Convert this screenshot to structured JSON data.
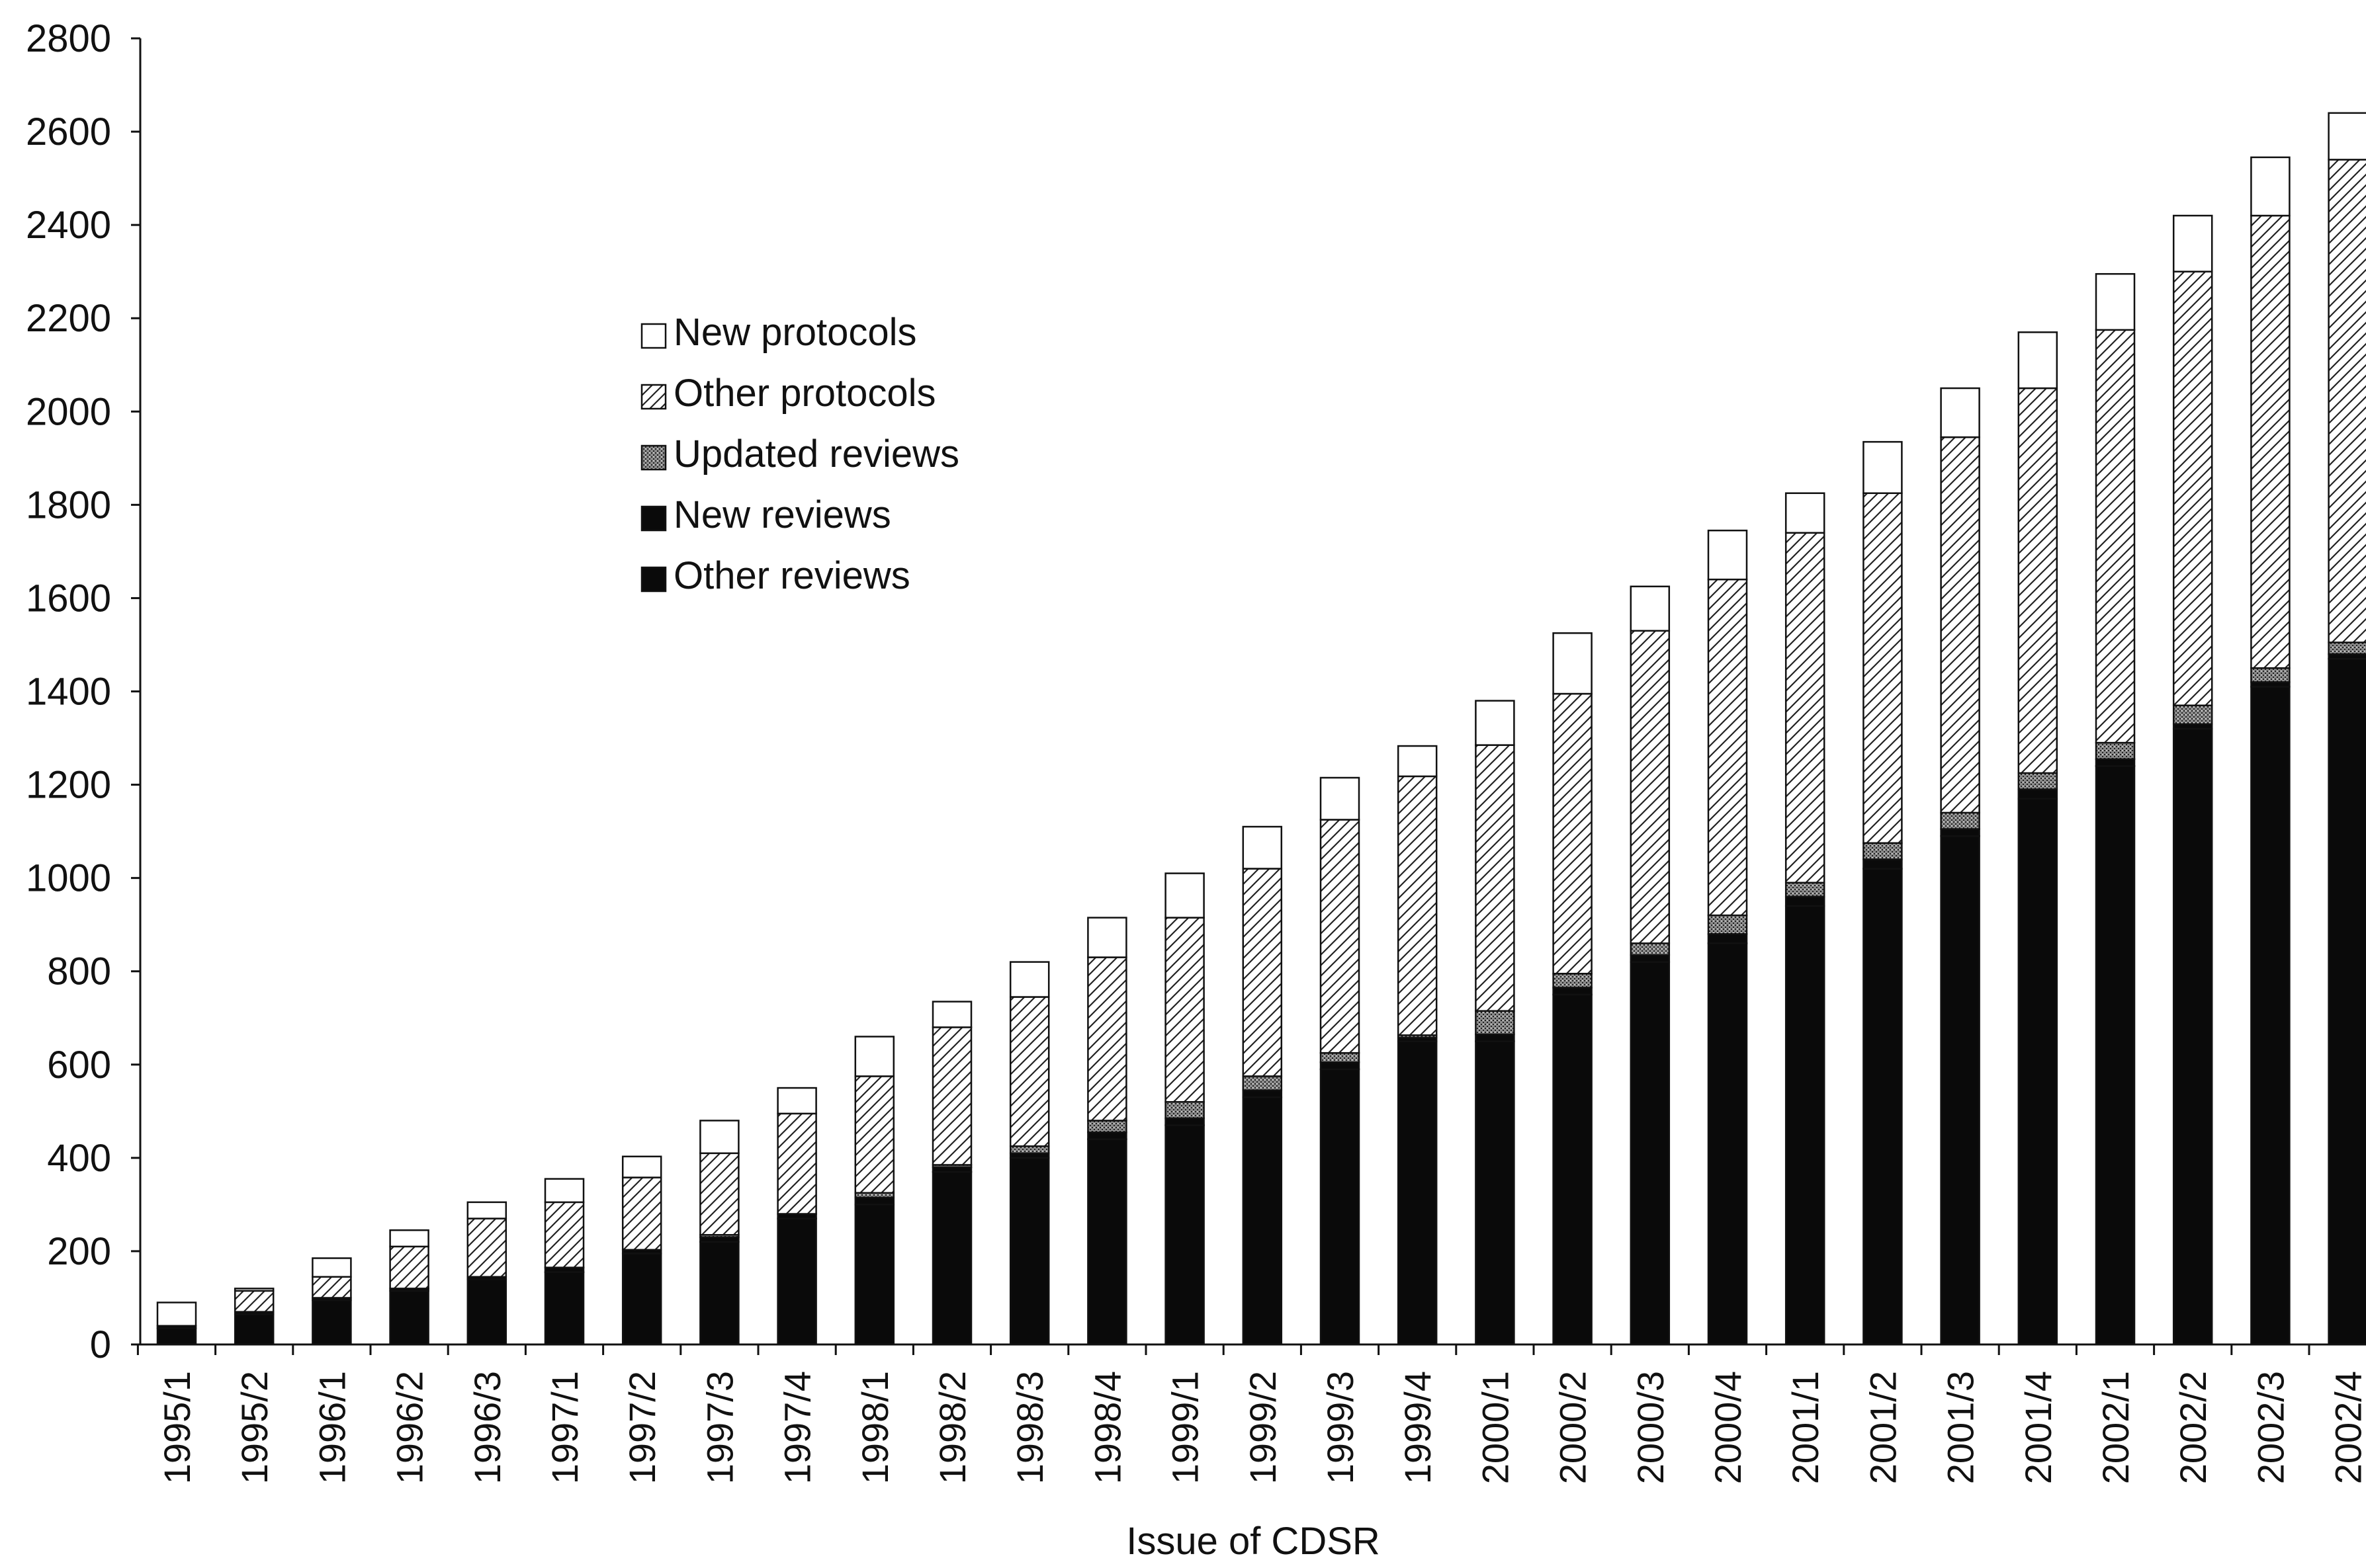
{
  "chart_data": {
    "type": "bar",
    "stacked": true,
    "title": "",
    "xlabel": "Issue of CDSR",
    "ylabel": "",
    "ylim": [
      0,
      2800
    ],
    "yticks": [
      0,
      200,
      400,
      600,
      800,
      1000,
      1200,
      1400,
      1600,
      1800,
      2000,
      2200,
      2400,
      2600,
      2800
    ],
    "grid": false,
    "legend_position": "upper-left",
    "categories": [
      "1995/1",
      "1995/2",
      "1996/1",
      "1996/2",
      "1996/3",
      "1997/1",
      "1997/2",
      "1997/3",
      "1997/4",
      "1998/1",
      "1998/2",
      "1998/3",
      "1998/4",
      "1999/1",
      "1999/2",
      "1999/3",
      "1999/4",
      "2000/1",
      "2000/2",
      "2000/3",
      "2000/4",
      "2001/1",
      "2001/2",
      "2001/3",
      "2001/4",
      "2002/1",
      "2002/2",
      "2002/3",
      "2002/4"
    ],
    "series": [
      {
        "name": "Other reviews",
        "fill": "solid-black",
        "values": [
          35,
          65,
          95,
          115,
          140,
          155,
          195,
          220,
          270,
          300,
          370,
          400,
          440,
          470,
          530,
          590,
          650,
          650,
          750,
          820,
          860,
          940,
          1020,
          1090,
          1170,
          1240,
          1320,
          1410,
          1470
        ]
      },
      {
        "name": "New reviews",
        "fill": "solid-black",
        "values": [
          5,
          5,
          5,
          5,
          5,
          10,
          8,
          10,
          10,
          15,
          10,
          10,
          15,
          15,
          15,
          15,
          8,
          15,
          15,
          15,
          20,
          20,
          20,
          15,
          20,
          15,
          10,
          10,
          10
        ]
      },
      {
        "name": "Updated reviews",
        "fill": "stipple",
        "values": [
          0,
          0,
          0,
          0,
          0,
          0,
          0,
          5,
          0,
          10,
          5,
          15,
          25,
          35,
          30,
          20,
          5,
          50,
          30,
          25,
          40,
          30,
          35,
          35,
          35,
          35,
          40,
          30,
          25
        ]
      },
      {
        "name": "Other protocols",
        "fill": "hatch",
        "values": [
          0,
          45,
          45,
          90,
          125,
          140,
          155,
          175,
          215,
          250,
          295,
          320,
          350,
          395,
          445,
          500,
          555,
          570,
          600,
          670,
          720,
          750,
          750,
          805,
          825,
          885,
          930,
          970,
          1035
        ]
      },
      {
        "name": "New protocols",
        "fill": "white",
        "values": [
          50,
          5,
          40,
          35,
          35,
          50,
          45,
          70,
          55,
          85,
          55,
          75,
          85,
          95,
          90,
          90,
          65,
          95,
          130,
          95,
          105,
          85,
          110,
          105,
          120,
          120,
          120,
          125,
          100
        ]
      }
    ]
  }
}
